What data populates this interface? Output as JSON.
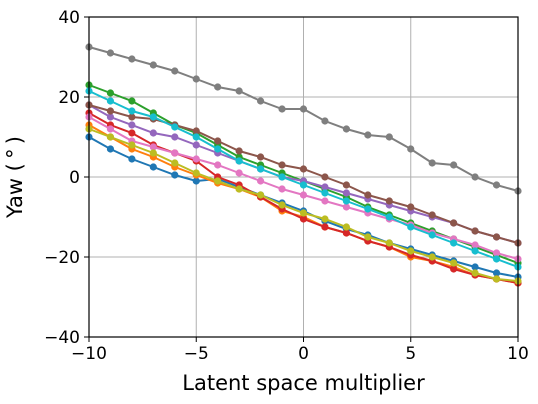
{
  "chart_data": {
    "type": "line",
    "title": "",
    "xlabel": "Latent space multiplier",
    "ylabel": "Yaw ($^\\circ$)",
    "xlim": [
      -10,
      10
    ],
    "ylim": [
      -40,
      40
    ],
    "xticks": [
      -10,
      -5,
      0,
      5,
      10
    ],
    "yticks": [
      -40,
      -20,
      0,
      20,
      40
    ],
    "xtick_labels": [
      "−10",
      "−5",
      "0",
      "5",
      "10"
    ],
    "ytick_labels": [
      "−40",
      "−20",
      "0",
      "20",
      "40"
    ],
    "grid": true,
    "x": [
      -10,
      -9,
      -8,
      -7,
      -6,
      -5,
      -4,
      -3,
      -2,
      -1,
      0,
      1,
      2,
      3,
      4,
      5,
      6,
      7,
      8,
      9,
      10
    ],
    "series": [
      {
        "color": "#1f77b4",
        "values": [
          10,
          7,
          4.5,
          2.5,
          0.5,
          -1,
          -0.5,
          -2.5,
          -4.5,
          -6.5,
          -8.5,
          -11,
          -13,
          -14.5,
          -16.5,
          -18,
          -19.5,
          -21,
          -22.5,
          -24,
          -25
        ]
      },
      {
        "color": "#ff7f0e",
        "values": [
          13,
          10,
          7,
          5,
          2.5,
          0.5,
          -1.5,
          -3,
          -5,
          -8.5,
          -10,
          -12.5,
          -14,
          -16,
          -17.5,
          -20,
          -21,
          -22.5,
          -24.5,
          -25.5,
          -26.5
        ]
      },
      {
        "color": "#2ca02c",
        "values": [
          23,
          21,
          19,
          16,
          13,
          11,
          8,
          5,
          3,
          1,
          -1,
          -3,
          -5,
          -7.5,
          -9.5,
          -11.5,
          -13.5,
          -15.5,
          -17.5,
          -19.5,
          -21.5
        ]
      },
      {
        "color": "#d62728",
        "values": [
          16,
          13,
          11,
          8,
          6,
          4,
          0,
          -2,
          -5,
          -8,
          -10.5,
          -12.5,
          -14,
          -16,
          -17.5,
          -19.5,
          -21,
          -23,
          -24.5,
          -25.5,
          -26.5
        ]
      },
      {
        "color": "#9467bd",
        "values": [
          18,
          15,
          13,
          11,
          10,
          8,
          6,
          4,
          2,
          0,
          -1,
          -2.5,
          -4,
          -5.5,
          -7,
          -8.5,
          -10,
          -11.5,
          -13.5,
          -15,
          -16.5
        ]
      },
      {
        "color": "#8c564b",
        "values": [
          18,
          16.5,
          15,
          14.5,
          13,
          11.5,
          9,
          6.5,
          5,
          3,
          2,
          0,
          -2,
          -4.5,
          -6,
          -7.5,
          -9.5,
          -11.5,
          -13.5,
          -15,
          -16.5
        ]
      },
      {
        "color": "#e377c2",
        "values": [
          15,
          12,
          9,
          7.5,
          6,
          4.5,
          3,
          1,
          -1,
          -3,
          -4.5,
          -6,
          -7.5,
          -9,
          -10.5,
          -12,
          -14,
          -15.5,
          -17,
          -19,
          -20.5
        ]
      },
      {
        "color": "#7f7f7f",
        "values": [
          32.5,
          31,
          29.5,
          28,
          26.5,
          24.5,
          22.5,
          21.5,
          19,
          17,
          17,
          14,
          12,
          10.5,
          10,
          7,
          3.5,
          3,
          0,
          -2,
          -3.5
        ]
      },
      {
        "color": "#bcbd22",
        "values": [
          12,
          10,
          8,
          6,
          3.5,
          1,
          -1,
          -3,
          -4.5,
          -7,
          -9,
          -10.5,
          -12.5,
          -15,
          -16.5,
          -18.5,
          -20,
          -21.5,
          -24,
          -25.5,
          -26
        ]
      },
      {
        "color": "#17becf",
        "values": [
          21.5,
          19,
          16.5,
          15,
          12.5,
          10,
          7,
          4,
          2,
          0,
          -2,
          -4,
          -6,
          -8,
          -10,
          -12.5,
          -14.5,
          -16.5,
          -18.5,
          -20.5,
          -22.5
        ]
      }
    ]
  }
}
